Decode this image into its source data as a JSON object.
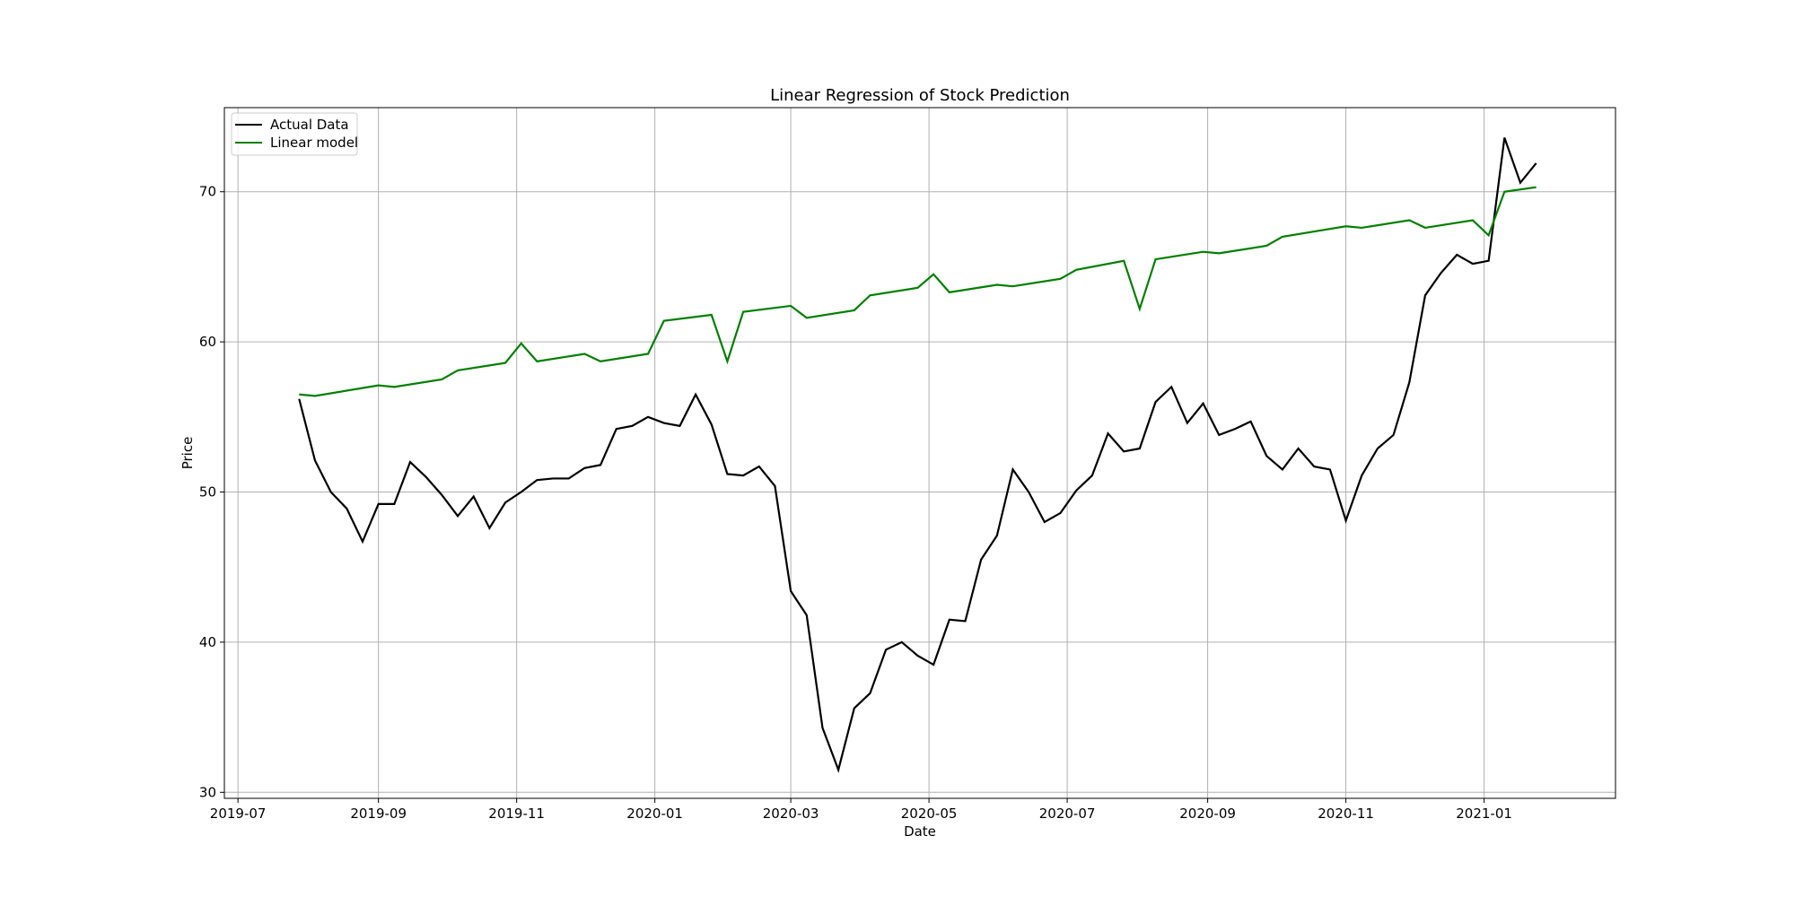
{
  "chart_data": {
    "type": "line",
    "title": "Linear Regression of Stock Prediction",
    "xlabel": "Date",
    "ylabel": "Price",
    "x_axis_type": "date",
    "xlim": [
      "2019-06-25",
      "2021-02-28"
    ],
    "ylim": [
      29.6,
      75.6
    ],
    "x_ticks": [
      "2019-07-01",
      "2019-09-01",
      "2019-11-01",
      "2020-01-01",
      "2020-03-01",
      "2020-05-01",
      "2020-07-01",
      "2020-09-01",
      "2020-11-01",
      "2021-01-01"
    ],
    "x_tick_labels": [
      "2019-07",
      "2019-09",
      "2019-11",
      "2020-01",
      "2020-03",
      "2020-05",
      "2020-07",
      "2020-09",
      "2020-11",
      "2021-01"
    ],
    "y_ticks": [
      30,
      40,
      50,
      60,
      70
    ],
    "y_tick_labels": [
      "30",
      "40",
      "50",
      "60",
      "70"
    ],
    "grid": true,
    "legend_position": "upper-left",
    "series": [
      {
        "name": "Actual Data",
        "color": "#000000",
        "points": [
          [
            "2019-07-28",
            56.2
          ],
          [
            "2019-08-04",
            52.1
          ],
          [
            "2019-08-11",
            50.0
          ],
          [
            "2019-08-18",
            48.9
          ],
          [
            "2019-08-25",
            46.7
          ],
          [
            "2019-09-01",
            49.2
          ],
          [
            "2019-09-08",
            49.2
          ],
          [
            "2019-09-15",
            52.0
          ],
          [
            "2019-09-22",
            51.0
          ],
          [
            "2019-09-29",
            49.8
          ],
          [
            "2019-10-06",
            48.4
          ],
          [
            "2019-10-13",
            49.7
          ],
          [
            "2019-10-20",
            47.6
          ],
          [
            "2019-10-27",
            49.3
          ],
          [
            "2019-11-03",
            50.0
          ],
          [
            "2019-11-10",
            50.8
          ],
          [
            "2019-11-17",
            50.9
          ],
          [
            "2019-11-24",
            50.9
          ],
          [
            "2019-12-01",
            51.6
          ],
          [
            "2019-12-08",
            51.8
          ],
          [
            "2019-12-15",
            54.2
          ],
          [
            "2019-12-22",
            54.4
          ],
          [
            "2019-12-29",
            55.0
          ],
          [
            "2020-01-05",
            54.6
          ],
          [
            "2020-01-12",
            54.4
          ],
          [
            "2020-01-19",
            56.5
          ],
          [
            "2020-01-26",
            54.5
          ],
          [
            "2020-02-02",
            51.2
          ],
          [
            "2020-02-09",
            51.1
          ],
          [
            "2020-02-16",
            51.7
          ],
          [
            "2020-02-23",
            50.4
          ],
          [
            "2020-03-01",
            43.4
          ],
          [
            "2020-03-08",
            41.8
          ],
          [
            "2020-03-15",
            34.3
          ],
          [
            "2020-03-22",
            31.5
          ],
          [
            "2020-03-29",
            35.6
          ],
          [
            "2020-04-05",
            36.6
          ],
          [
            "2020-04-12",
            39.5
          ],
          [
            "2020-04-19",
            40.0
          ],
          [
            "2020-04-26",
            39.1
          ],
          [
            "2020-05-03",
            38.5
          ],
          [
            "2020-05-10",
            41.5
          ],
          [
            "2020-05-17",
            41.4
          ],
          [
            "2020-05-24",
            45.5
          ],
          [
            "2020-05-31",
            47.1
          ],
          [
            "2020-06-07",
            51.5
          ],
          [
            "2020-06-14",
            50.0
          ],
          [
            "2020-06-21",
            48.0
          ],
          [
            "2020-06-28",
            48.6
          ],
          [
            "2020-07-05",
            50.1
          ],
          [
            "2020-07-12",
            51.1
          ],
          [
            "2020-07-19",
            53.9
          ],
          [
            "2020-07-26",
            52.7
          ],
          [
            "2020-08-02",
            52.9
          ],
          [
            "2020-08-09",
            56.0
          ],
          [
            "2020-08-16",
            57.0
          ],
          [
            "2020-08-23",
            54.6
          ],
          [
            "2020-08-30",
            55.9
          ],
          [
            "2020-09-06",
            53.8
          ],
          [
            "2020-09-13",
            54.2
          ],
          [
            "2020-09-20",
            54.7
          ],
          [
            "2020-09-27",
            52.4
          ],
          [
            "2020-10-04",
            51.5
          ],
          [
            "2020-10-11",
            52.9
          ],
          [
            "2020-10-18",
            51.7
          ],
          [
            "2020-10-25",
            51.5
          ],
          [
            "2020-11-01",
            48.1
          ],
          [
            "2020-11-08",
            51.1
          ],
          [
            "2020-11-15",
            52.9
          ],
          [
            "2020-11-22",
            53.8
          ],
          [
            "2020-11-29",
            57.3
          ],
          [
            "2020-12-06",
            63.1
          ],
          [
            "2020-12-13",
            64.6
          ],
          [
            "2020-12-20",
            65.8
          ],
          [
            "2020-12-27",
            65.2
          ],
          [
            "2021-01-03",
            65.4
          ],
          [
            "2021-01-10",
            73.6
          ],
          [
            "2021-01-17",
            70.6
          ],
          [
            "2021-01-24",
            71.9
          ]
        ]
      },
      {
        "name": "Linear model",
        "color": "#008000",
        "points": [
          [
            "2019-07-28",
            56.5
          ],
          [
            "2019-08-04",
            56.4
          ],
          [
            "2019-09-01",
            57.1
          ],
          [
            "2019-09-08",
            57.0
          ],
          [
            "2019-09-29",
            57.5
          ],
          [
            "2019-10-06",
            58.1
          ],
          [
            "2019-10-27",
            58.6
          ],
          [
            "2019-11-03",
            59.9
          ],
          [
            "2019-11-10",
            58.7
          ],
          [
            "2019-12-01",
            59.2
          ],
          [
            "2019-12-08",
            58.7
          ],
          [
            "2019-12-29",
            59.2
          ],
          [
            "2020-01-05",
            61.4
          ],
          [
            "2020-01-26",
            61.8
          ],
          [
            "2020-02-02",
            58.7
          ],
          [
            "2020-02-09",
            62.0
          ],
          [
            "2020-03-01",
            62.4
          ],
          [
            "2020-03-08",
            61.6
          ],
          [
            "2020-03-29",
            62.1
          ],
          [
            "2020-04-05",
            63.1
          ],
          [
            "2020-04-26",
            63.6
          ],
          [
            "2020-05-03",
            64.5
          ],
          [
            "2020-05-10",
            63.3
          ],
          [
            "2020-05-31",
            63.8
          ],
          [
            "2020-06-07",
            63.7
          ],
          [
            "2020-06-28",
            64.2
          ],
          [
            "2020-07-05",
            64.8
          ],
          [
            "2020-07-26",
            65.4
          ],
          [
            "2020-08-02",
            62.2
          ],
          [
            "2020-08-09",
            65.5
          ],
          [
            "2020-08-30",
            66.0
          ],
          [
            "2020-09-06",
            65.9
          ],
          [
            "2020-09-27",
            66.4
          ],
          [
            "2020-10-04",
            67.0
          ],
          [
            "2020-11-01",
            67.7
          ],
          [
            "2020-11-08",
            67.6
          ],
          [
            "2020-11-29",
            68.1
          ],
          [
            "2020-12-06",
            67.6
          ],
          [
            "2020-12-27",
            68.1
          ],
          [
            "2021-01-03",
            67.1
          ],
          [
            "2021-01-10",
            70.0
          ],
          [
            "2021-01-24",
            70.3
          ]
        ]
      }
    ]
  }
}
